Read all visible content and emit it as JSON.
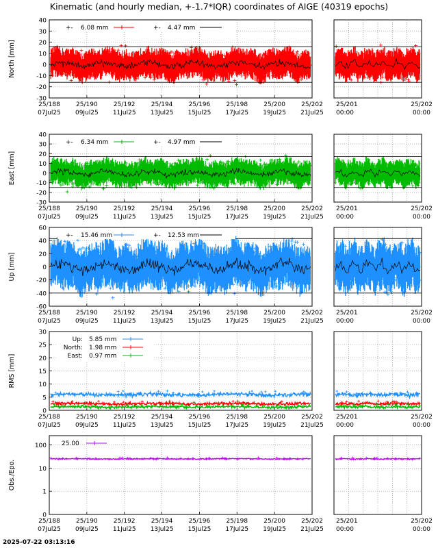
{
  "title": "Kinematic (and hourly median, +-1.7*IQR) coordinates of AIGE (40319 epochs)",
  "footer": "2025-07-22 03:13:16",
  "colors": {
    "north": "#ff0000",
    "east": "#00bb00",
    "up": "#1e90ff",
    "obs": "#c000ff",
    "median": "#000000"
  },
  "x_axis_main": {
    "ticks_top": [
      "25/188",
      "25/190",
      "25/192",
      "25/194",
      "25/196",
      "25/198",
      "25/200",
      "25/202"
    ],
    "ticks_bottom": [
      "07Jul25",
      "09Jul25",
      "11Jul25",
      "13Jul25",
      "15Jul25",
      "17Jul25",
      "19Jul25",
      "21Jul25"
    ]
  },
  "x_axis_zoom": {
    "ticks_top": [
      "25/201",
      "25/202"
    ],
    "ticks_bottom": [
      "00:00",
      "00:00"
    ]
  },
  "chart_data": [
    {
      "id": "north",
      "type": "scatter",
      "ylabel": "North [mm]",
      "ylim": [
        -30,
        40
      ],
      "yticks": [
        -30,
        -20,
        -10,
        0,
        10,
        20,
        30,
        40
      ],
      "iqr_band": [
        -16,
        16
      ],
      "series": [
        {
          "name": "",
          "label": "+-",
          "value": "6.08 mm",
          "kind": "kinematic"
        },
        {
          "name": "",
          "label": "+-",
          "value": "4.47 mm",
          "kind": "median"
        }
      ]
    },
    {
      "id": "east",
      "type": "scatter",
      "ylabel": "East [mm]",
      "ylim": [
        -30,
        40
      ],
      "yticks": [
        -30,
        -20,
        -10,
        0,
        10,
        20,
        30,
        40
      ],
      "iqr_band": [
        -15,
        17
      ],
      "series": [
        {
          "name": "",
          "label": "+-",
          "value": "6.34 mm",
          "kind": "kinematic"
        },
        {
          "name": "",
          "label": "+-",
          "value": "4.97 mm",
          "kind": "median"
        }
      ]
    },
    {
      "id": "up",
      "type": "scatter",
      "ylabel": "Up [mm]",
      "ylim": [
        -60,
        60
      ],
      "yticks": [
        -60,
        -40,
        -20,
        0,
        20,
        40,
        60
      ],
      "iqr_band": [
        -40,
        43
      ],
      "series": [
        {
          "name": "",
          "label": "+-",
          "value": "15.46 mm",
          "kind": "kinematic"
        },
        {
          "name": "",
          "label": "+-",
          "value": "12.53 mm",
          "kind": "median"
        }
      ]
    },
    {
      "id": "rms",
      "type": "line",
      "ylabel": "RMS [mm]",
      "ylim": [
        0,
        30
      ],
      "yticks": [
        0,
        5,
        10,
        15,
        20,
        25,
        30
      ],
      "series": [
        {
          "name": "Up:",
          "value": "5.85 mm",
          "level": 6
        },
        {
          "name": "North:",
          "value": "1.98 mm",
          "level": 2.5
        },
        {
          "name": "East:",
          "value": "0.97 mm",
          "level": 1.3
        }
      ]
    },
    {
      "id": "obs",
      "type": "line",
      "ylabel": "Obs./Epo.",
      "scale": "log",
      "yticks": [
        "0",
        "1",
        "10",
        "100"
      ],
      "series": [
        {
          "name": "",
          "value": "25.00",
          "level": 25
        }
      ]
    }
  ]
}
